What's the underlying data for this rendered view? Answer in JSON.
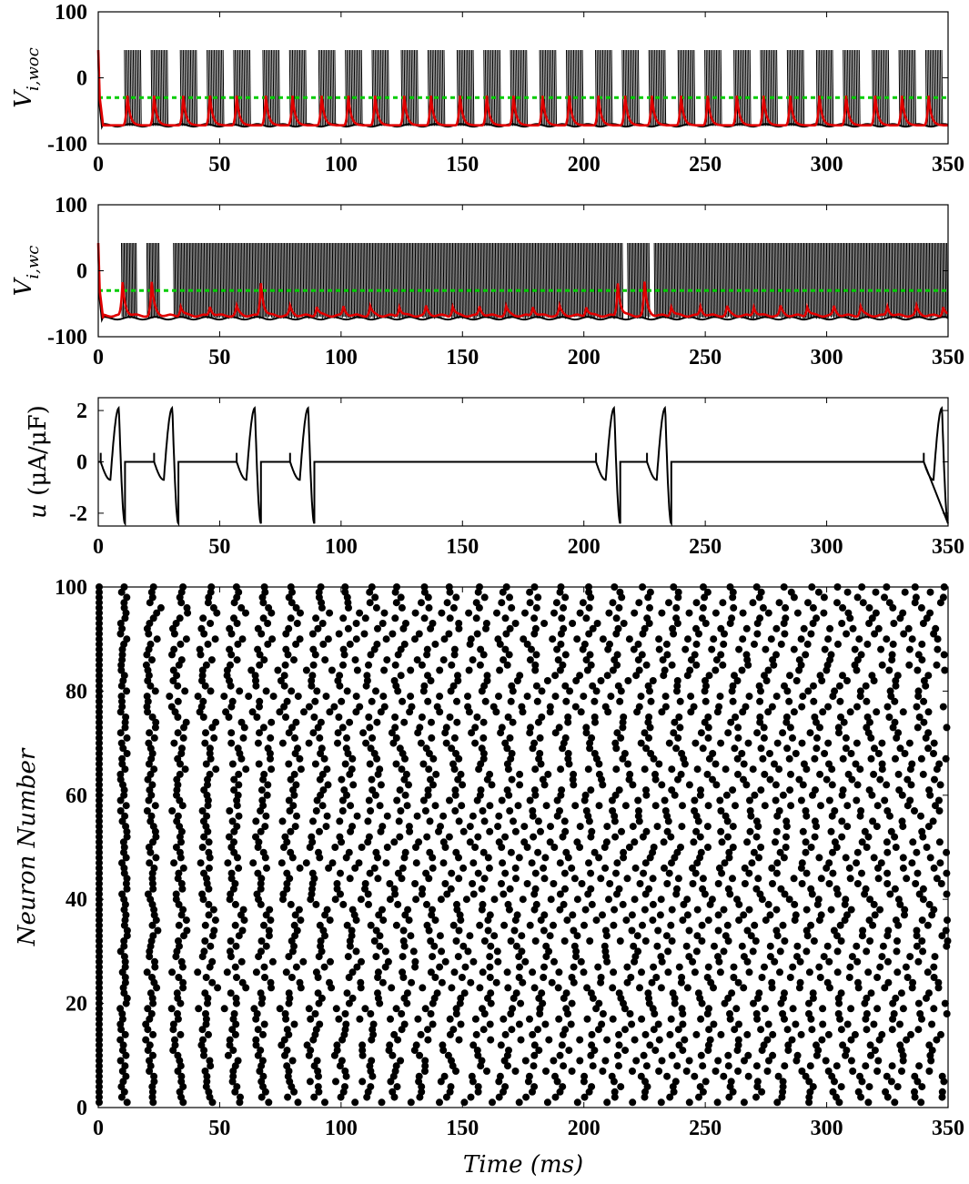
{
  "chart_data": [
    {
      "panel": "top",
      "type": "line",
      "ylabel": "V_{i,woc}",
      "ylabel_main": "V",
      "ylabel_sub": "i,woc",
      "ylim": [
        -100,
        100
      ],
      "xlim": [
        0,
        350
      ],
      "yticks": [
        "100",
        "0",
        "-100"
      ],
      "xticks": [
        "0",
        "50",
        "100",
        "150",
        "200",
        "250",
        "300",
        "350"
      ],
      "threshold": -30,
      "threshold_color": "#00cc00",
      "mean_color": "#e00000",
      "raster_color": "#000000",
      "burst_times": [
        12,
        23,
        35,
        46,
        57,
        69,
        80,
        92,
        103,
        114,
        126,
        137,
        149,
        160,
        171,
        183,
        194,
        206,
        217,
        228,
        240,
        251,
        263,
        274,
        285,
        297,
        308,
        320,
        331,
        342
      ],
      "series": [
        {
          "description": "individual neuron voltages (black), spiking between about -70 and 40",
          "min": -70,
          "max": 40
        },
        {
          "description": "mean voltage (red)",
          "start": 42,
          "baseline": -72,
          "peak": -25
        }
      ]
    },
    {
      "panel": "second",
      "type": "line",
      "ylabel": "V_{i,wc}",
      "ylabel_main": "V",
      "ylabel_sub": "i,wc",
      "ylim": [
        -100,
        100
      ],
      "xlim": [
        0,
        350
      ],
      "yticks": [
        "100",
        "0",
        "-100"
      ],
      "xticks": [
        "0",
        "50",
        "100",
        "150",
        "200",
        "250",
        "300",
        "350"
      ],
      "threshold": -30,
      "burst_times": [
        10,
        22,
        34,
        46,
        57,
        67,
        79,
        90,
        101,
        112,
        124,
        135,
        146,
        157,
        168,
        179,
        190,
        201,
        214,
        225,
        236,
        248,
        259,
        270,
        281,
        292,
        303,
        314,
        325,
        337,
        348
      ],
      "big_peaks": [
        10,
        22,
        67,
        214,
        225
      ],
      "dense_gaps": [
        [
          7,
          9
        ],
        [
          16,
          20
        ],
        [
          25,
          31
        ],
        [
          216,
          218
        ],
        [
          227,
          229
        ]
      ]
    },
    {
      "panel": "control",
      "type": "line",
      "ylabel": "u (μA/μF)",
      "ylabel_var": "u",
      "ylabel_unit": "(μA/μF)",
      "ylim": [
        -2.5,
        2.5
      ],
      "xlim": [
        0,
        350
      ],
      "yticks": [
        "2",
        "0",
        "-2"
      ],
      "xticks": [
        "0",
        "50",
        "100",
        "150",
        "200",
        "250",
        "300",
        "350"
      ],
      "pulse_starts": [
        1,
        23,
        57,
        79,
        205,
        226,
        340
      ],
      "pulse_amplitude": 2.1
    },
    {
      "panel": "raster",
      "type": "scatter",
      "xlabel": "Time (ms)",
      "xlabel_main": "Time",
      "xlabel_unit": "(ms)",
      "ylabel": "Neuron Number",
      "ylim": [
        0,
        100
      ],
      "xlim": [
        0,
        350
      ],
      "yticks": [
        "0",
        "20",
        "40",
        "60",
        "80",
        "100"
      ],
      "xticks": [
        "0",
        "50",
        "100",
        "150",
        "200",
        "250",
        "300",
        "350"
      ],
      "neurons": 100,
      "initial_spike_time": 0,
      "period_ms": 11.4
    }
  ]
}
